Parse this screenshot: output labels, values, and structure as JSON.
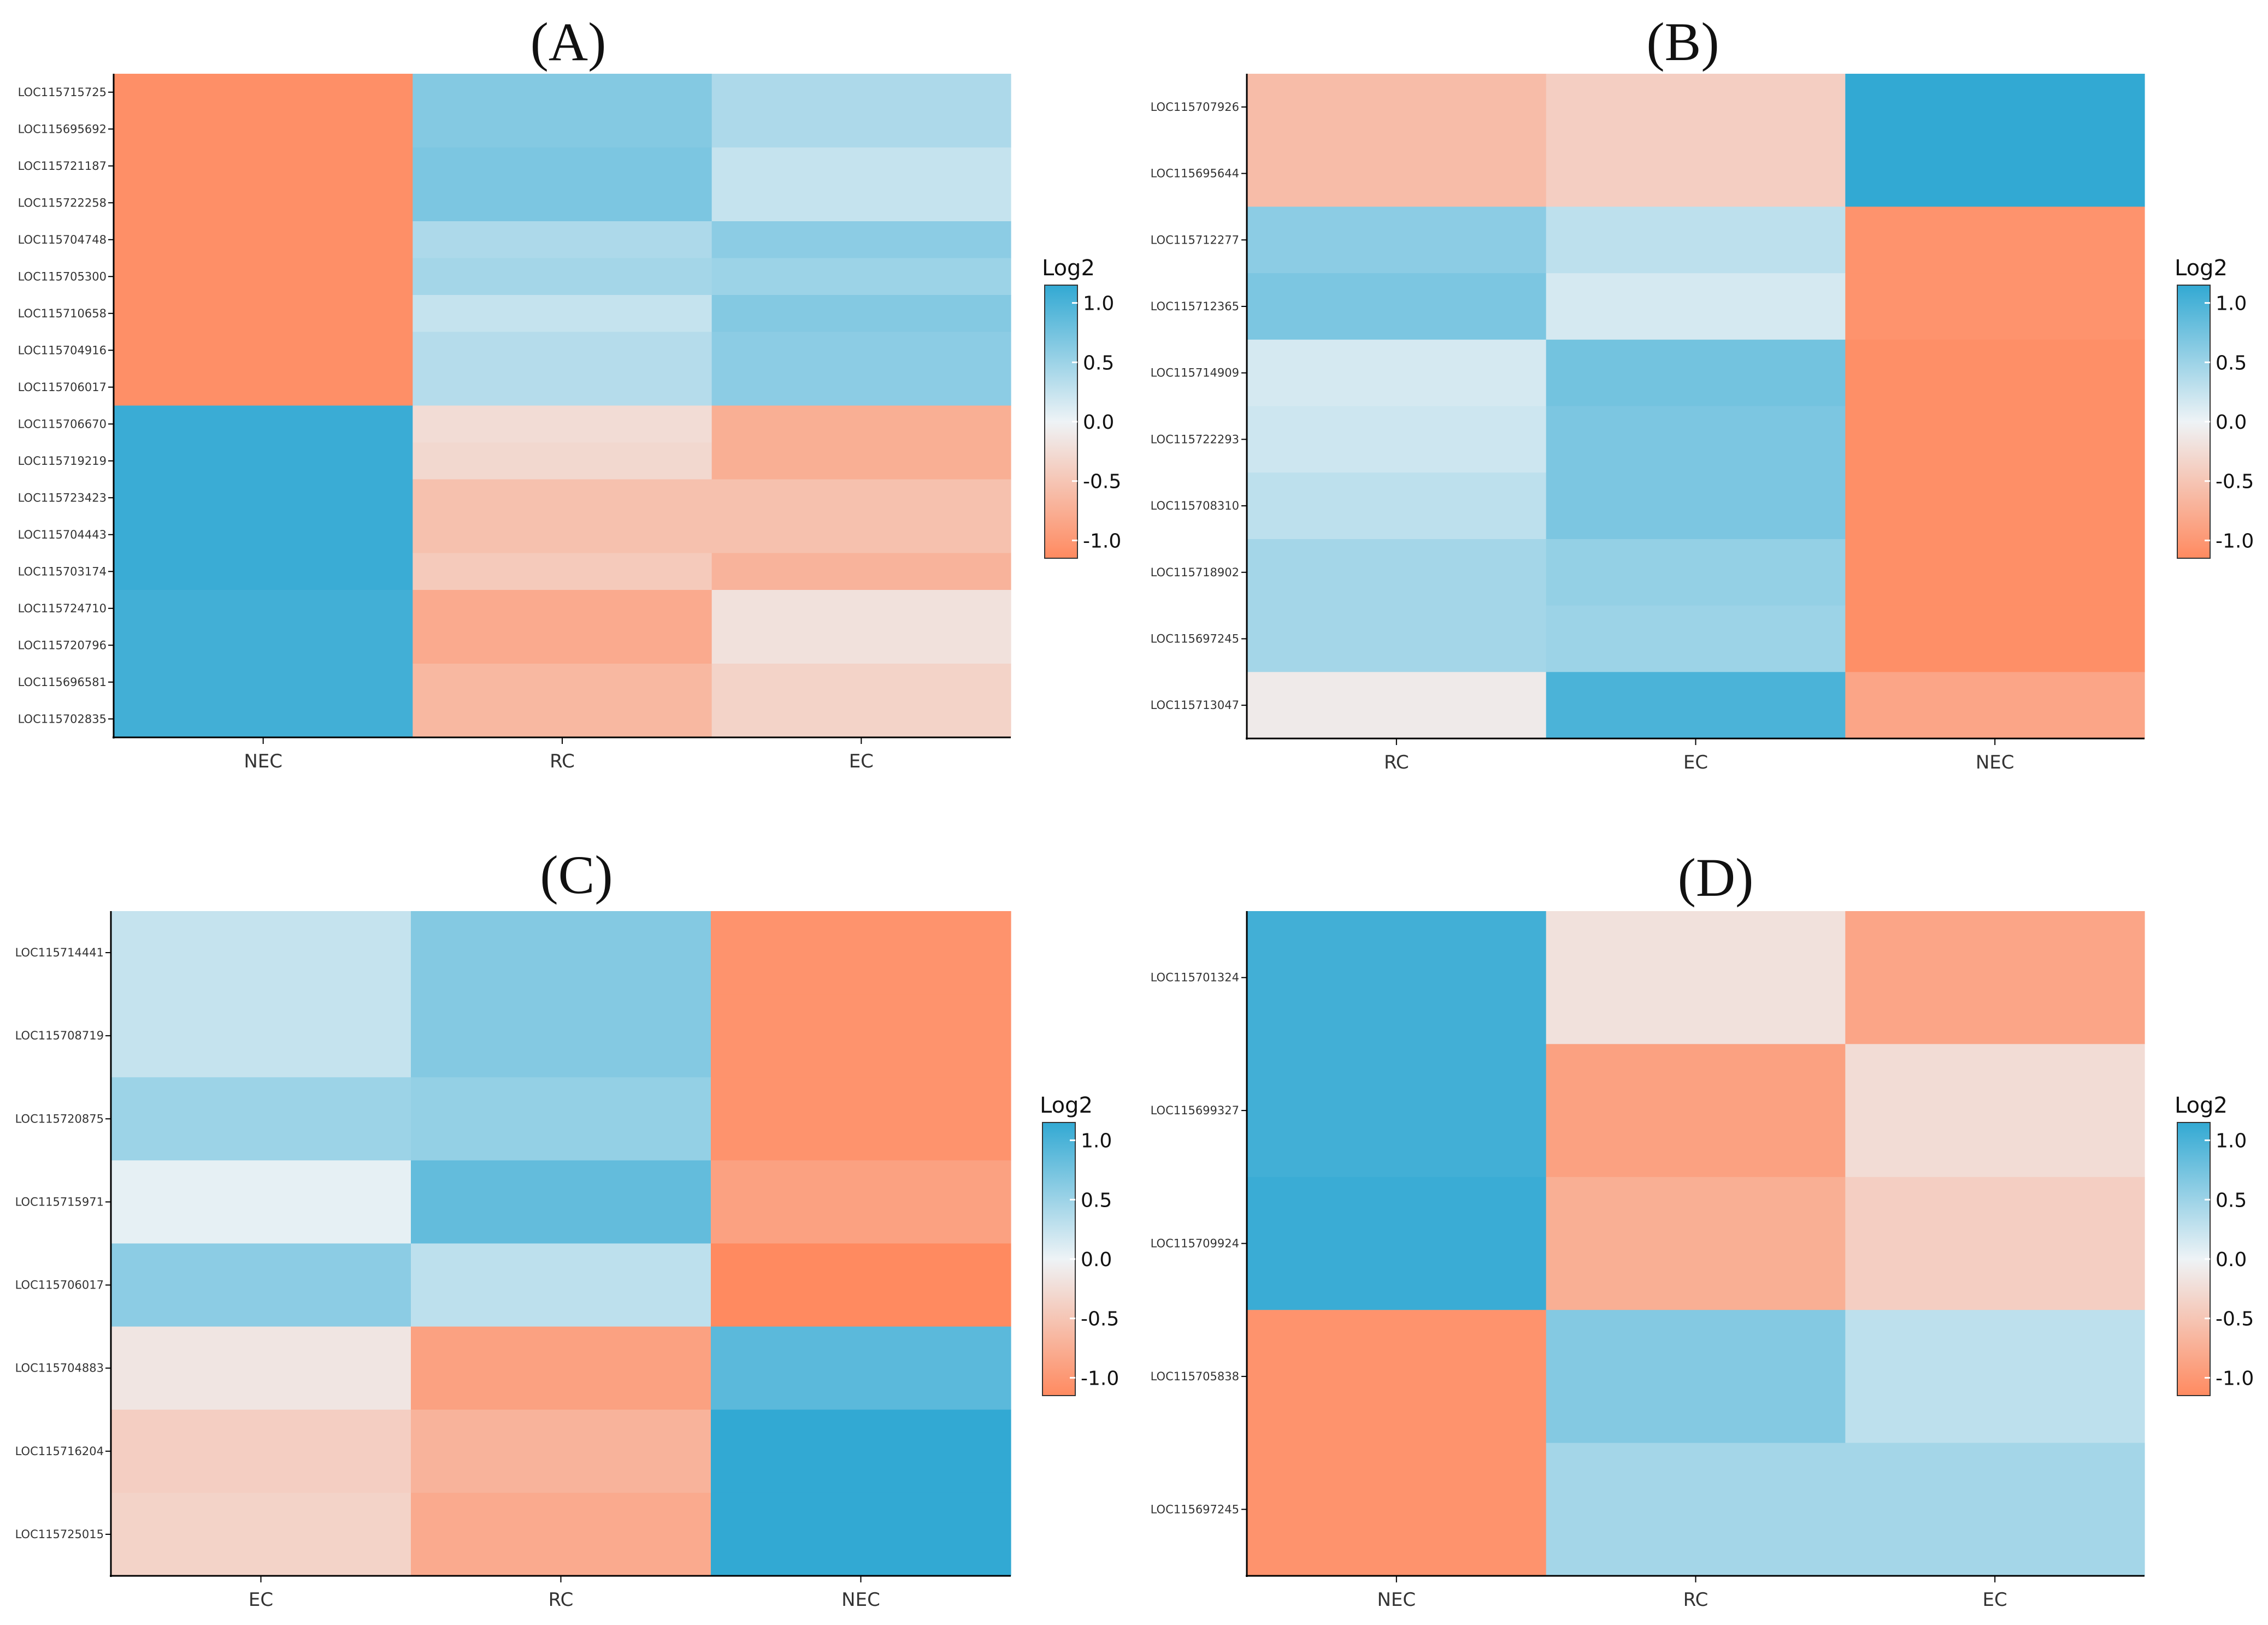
{
  "legend_title": "Log2",
  "legend_ticks": [
    "1.0",
    "0.5",
    "0.0",
    "-0.5",
    "-1.0"
  ],
  "colors": {
    "high": "#32a9d3",
    "mid": "#eef3f6",
    "low": "#ff8a60"
  },
  "chart_data": [
    {
      "type": "heatmap",
      "title": "(A)",
      "columns": [
        "NEC",
        "RC",
        "EC"
      ],
      "rows": [
        "LOC115715725",
        "LOC115695692",
        "LOC115721187",
        "LOC115722258",
        "LOC115704748",
        "LOC115705300",
        "LOC115710658",
        "LOC115704916",
        "LOC115706017",
        "LOC115706670",
        "LOC115719219",
        "LOC115723423",
        "LOC115704443",
        "LOC115703174",
        "LOC115724710",
        "LOC115720796",
        "LOC115696581",
        "LOC115702835"
      ],
      "values": [
        [
          -1.1,
          0.65,
          0.4
        ],
        [
          -1.1,
          0.65,
          0.4
        ],
        [
          -1.1,
          0.7,
          0.25
        ],
        [
          -1.1,
          0.7,
          0.25
        ],
        [
          -1.1,
          0.4,
          0.6
        ],
        [
          -1.1,
          0.45,
          0.5
        ],
        [
          -1.1,
          0.25,
          0.65
        ],
        [
          -1.1,
          0.35,
          0.6
        ],
        [
          -1.1,
          0.35,
          0.6
        ],
        [
          1.1,
          -0.25,
          -0.75
        ],
        [
          1.1,
          -0.3,
          -0.75
        ],
        [
          1.1,
          -0.55,
          -0.55
        ],
        [
          1.1,
          -0.55,
          -0.55
        ],
        [
          1.1,
          -0.45,
          -0.7
        ],
        [
          1.05,
          -0.8,
          -0.2
        ],
        [
          1.05,
          -0.8,
          -0.2
        ],
        [
          1.05,
          -0.65,
          -0.35
        ],
        [
          1.05,
          -0.65,
          -0.35
        ]
      ],
      "color_range": [
        -1.15,
        1.15
      ]
    },
    {
      "type": "heatmap",
      "title": "(B)",
      "columns": [
        "RC",
        "EC",
        "NEC"
      ],
      "rows": [
        "LOC115707926",
        "LOC115695644",
        "LOC115712277",
        "LOC115712365",
        "LOC115714909",
        "LOC115722293",
        "LOC115708310",
        "LOC115718902",
        "LOC115697245",
        "LOC115713047"
      ],
      "values": [
        [
          -0.6,
          -0.4,
          1.15
        ],
        [
          -0.6,
          -0.4,
          1.15
        ],
        [
          0.6,
          0.3,
          -1.05
        ],
        [
          0.7,
          0.15,
          -1.05
        ],
        [
          0.15,
          0.75,
          -1.1
        ],
        [
          0.2,
          0.7,
          -1.1
        ],
        [
          0.3,
          0.7,
          -1.1
        ],
        [
          0.45,
          0.55,
          -1.1
        ],
        [
          0.45,
          0.5,
          -1.1
        ],
        [
          -0.1,
          1.0,
          -0.85
        ]
      ],
      "color_range": [
        -1.15,
        1.15
      ]
    },
    {
      "type": "heatmap",
      "title": "(C)",
      "columns": [
        "EC",
        "RC",
        "NEC"
      ],
      "rows": [
        "LOC115714441",
        "LOC115708719",
        "LOC115720875",
        "LOC115715971",
        "LOC115706017",
        "LOC115704883",
        "LOC115716204",
        "LOC115725015"
      ],
      "values": [
        [
          0.25,
          0.65,
          -1.05
        ],
        [
          0.25,
          0.65,
          -1.05
        ],
        [
          0.5,
          0.55,
          -1.05
        ],
        [
          0.05,
          0.85,
          -0.9
        ],
        [
          0.6,
          0.3,
          -1.15
        ],
        [
          -0.15,
          -0.9,
          0.9
        ],
        [
          -0.4,
          -0.7,
          1.15
        ],
        [
          -0.35,
          -0.8,
          1.15
        ]
      ],
      "color_range": [
        -1.15,
        1.15
      ]
    },
    {
      "type": "heatmap",
      "title": "(D)",
      "columns": [
        "NEC",
        "RC",
        "EC"
      ],
      "rows": [
        "LOC115701324",
        "LOC115699327",
        "LOC115709924",
        "LOC115705838",
        "LOC115697245"
      ],
      "values": [
        [
          1.05,
          -0.2,
          -0.85
        ],
        [
          1.05,
          -0.9,
          -0.25
        ],
        [
          1.1,
          -0.75,
          -0.4
        ],
        [
          -1.05,
          0.65,
          0.3
        ],
        [
          -1.05,
          0.45,
          0.45
        ]
      ],
      "color_range": [
        -1.15,
        1.15
      ]
    }
  ]
}
